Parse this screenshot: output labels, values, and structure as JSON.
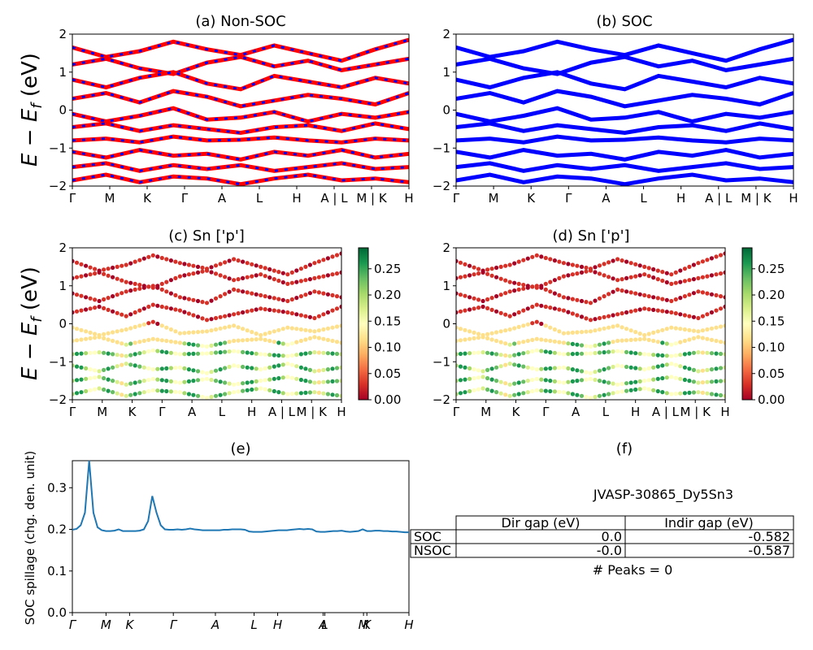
{
  "chart_data": [
    {
      "type": "line",
      "title": "(a) Non-SOC",
      "ylabel": "E − E_f (eV)",
      "ylim": [
        -2,
        2
      ],
      "yticks": [
        "−2",
        "−1",
        "0",
        "1",
        "2"
      ],
      "x_tick_labels": [
        "Γ",
        "M",
        "K",
        "Γ",
        "A",
        "L",
        "H",
        "A | L",
        "M | K",
        "H"
      ],
      "colors": [
        "#ff0000",
        "#0000ff"
      ],
      "bands": [
        [
          1.65,
          1.4,
          1.55,
          1.8,
          1.6,
          1.45,
          1.7,
          1.5,
          1.3,
          1.6,
          1.85
        ],
        [
          1.2,
          1.35,
          1.1,
          0.95,
          1.25,
          1.4,
          1.15,
          1.3,
          1.05,
          1.2,
          1.35
        ],
        [
          0.8,
          0.6,
          0.85,
          1.0,
          0.7,
          0.55,
          0.9,
          0.75,
          0.6,
          0.85,
          0.7
        ],
        [
          0.3,
          0.45,
          0.2,
          0.5,
          0.35,
          0.1,
          0.25,
          0.4,
          0.3,
          0.15,
          0.45
        ],
        [
          -0.1,
          -0.3,
          -0.15,
          0.05,
          -0.25,
          -0.2,
          -0.05,
          -0.3,
          -0.1,
          -0.2,
          -0.05
        ],
        [
          -0.45,
          -0.35,
          -0.55,
          -0.4,
          -0.5,
          -0.6,
          -0.45,
          -0.4,
          -0.55,
          -0.35,
          -0.5
        ],
        [
          -0.8,
          -0.75,
          -0.85,
          -0.7,
          -0.8,
          -0.78,
          -0.72,
          -0.8,
          -0.85,
          -0.75,
          -0.8
        ],
        [
          -1.1,
          -1.25,
          -1.05,
          -1.2,
          -1.15,
          -1.3,
          -1.1,
          -1.2,
          -1.05,
          -1.25,
          -1.15
        ],
        [
          -1.5,
          -1.4,
          -1.6,
          -1.45,
          -1.55,
          -1.45,
          -1.6,
          -1.5,
          -1.4,
          -1.55,
          -1.5
        ],
        [
          -1.85,
          -1.7,
          -1.9,
          -1.75,
          -1.8,
          -1.95,
          -1.8,
          -1.7,
          -1.85,
          -1.8,
          -1.9
        ]
      ]
    },
    {
      "type": "line",
      "title": "(b) SOC",
      "ylim": [
        -2,
        2
      ],
      "yticks": [
        "−2",
        "−1",
        "0",
        "1",
        "2"
      ],
      "x_tick_labels": [
        "Γ",
        "M",
        "K",
        "Γ",
        "A",
        "L",
        "H",
        "A | L",
        "M | K",
        "H"
      ],
      "colors": [
        "#0000ff"
      ],
      "bands": [
        [
          1.65,
          1.4,
          1.55,
          1.8,
          1.6,
          1.45,
          1.7,
          1.5,
          1.3,
          1.6,
          1.85
        ],
        [
          1.2,
          1.35,
          1.1,
          0.95,
          1.25,
          1.4,
          1.15,
          1.3,
          1.05,
          1.2,
          1.35
        ],
        [
          0.8,
          0.6,
          0.85,
          1.0,
          0.7,
          0.55,
          0.9,
          0.75,
          0.6,
          0.85,
          0.7
        ],
        [
          0.3,
          0.45,
          0.2,
          0.5,
          0.35,
          0.1,
          0.25,
          0.4,
          0.3,
          0.15,
          0.45
        ],
        [
          -0.1,
          -0.3,
          -0.15,
          0.05,
          -0.25,
          -0.2,
          -0.05,
          -0.3,
          -0.1,
          -0.2,
          -0.05
        ],
        [
          -0.45,
          -0.35,
          -0.55,
          -0.4,
          -0.5,
          -0.6,
          -0.45,
          -0.4,
          -0.55,
          -0.35,
          -0.5
        ],
        [
          -0.8,
          -0.75,
          -0.85,
          -0.7,
          -0.8,
          -0.78,
          -0.72,
          -0.8,
          -0.85,
          -0.75,
          -0.8
        ],
        [
          -1.1,
          -1.25,
          -1.05,
          -1.2,
          -1.15,
          -1.3,
          -1.1,
          -1.2,
          -1.05,
          -1.25,
          -1.15
        ],
        [
          -1.5,
          -1.4,
          -1.6,
          -1.45,
          -1.55,
          -1.45,
          -1.6,
          -1.5,
          -1.4,
          -1.55,
          -1.5
        ],
        [
          -1.85,
          -1.7,
          -1.9,
          -1.75,
          -1.8,
          -1.95,
          -1.8,
          -1.7,
          -1.85,
          -1.8,
          -1.9
        ]
      ]
    },
    {
      "type": "scatter",
      "title": "(c)  Sn ['p']",
      "ylabel": "E − E_f (eV)",
      "ylim": [
        -2,
        2
      ],
      "yticks": [
        "−2",
        "−1",
        "0",
        "1",
        "2"
      ],
      "x_tick_labels": [
        "Γ",
        "M",
        "K",
        "Γ",
        "A",
        "L",
        "H",
        "A | L",
        "M | K",
        "H"
      ],
      "colorbar_ticks": [
        "0.00",
        "0.05",
        "0.10",
        "0.15",
        "0.20",
        "0.25"
      ],
      "colorbar_range": [
        0,
        0.29
      ],
      "colormap": "RdYlGn"
    },
    {
      "type": "scatter",
      "title": "(d) Sn ['p']",
      "ylim": [
        -2,
        2
      ],
      "yticks": [
        "−2",
        "−1",
        "0",
        "1",
        "2"
      ],
      "x_tick_labels": [
        "Γ",
        "M",
        "K",
        "Γ",
        "A",
        "L",
        "H",
        "A | L",
        "M | K",
        "H"
      ],
      "colorbar_ticks": [
        "0.00",
        "0.05",
        "0.10",
        "0.15",
        "0.20",
        "0.25"
      ],
      "colorbar_range": [
        0,
        0.29
      ],
      "colormap": "RdYlGn"
    },
    {
      "type": "line",
      "title": "(e)",
      "ylabel": "SOC spillage (chg. den. unit)",
      "ylim": [
        0,
        0.365
      ],
      "yticks": [
        "0.0",
        "0.1",
        "0.2",
        "0.3"
      ],
      "x_tick_labels": [
        "Γ",
        "M",
        "K",
        "Γ",
        "A",
        "L",
        "H",
        "A",
        "L",
        "M",
        "K",
        "H"
      ],
      "color": "#1f77b4",
      "x": [
        0,
        1,
        2,
        3,
        4,
        5,
        6,
        7,
        8,
        9,
        10,
        11,
        12,
        13,
        14,
        15,
        16,
        17,
        18,
        19,
        20,
        21,
        22,
        23,
        24,
        25,
        26,
        27,
        28,
        29,
        30,
        31,
        32,
        33,
        34,
        35,
        36,
        37,
        38,
        39,
        40,
        41,
        42,
        43,
        44,
        45,
        46,
        47,
        48,
        49,
        50,
        51,
        52,
        53,
        54,
        55,
        56,
        57,
        58,
        59,
        60,
        61,
        62,
        63,
        64,
        65,
        66,
        67,
        68,
        69,
        70,
        71,
        72,
        73,
        74,
        75,
        76,
        77,
        78,
        79,
        80
      ],
      "y": [
        0.199,
        0.201,
        0.21,
        0.24,
        0.365,
        0.24,
        0.205,
        0.198,
        0.196,
        0.196,
        0.197,
        0.2,
        0.196,
        0.196,
        0.196,
        0.196,
        0.197,
        0.2,
        0.22,
        0.28,
        0.24,
        0.21,
        0.2,
        0.199,
        0.199,
        0.2,
        0.199,
        0.2,
        0.202,
        0.2,
        0.199,
        0.198,
        0.198,
        0.198,
        0.198,
        0.198,
        0.199,
        0.199,
        0.2,
        0.2,
        0.2,
        0.199,
        0.195,
        0.194,
        0.194,
        0.194,
        0.195,
        0.196,
        0.197,
        0.198,
        0.198,
        0.198,
        0.199,
        0.2,
        0.201,
        0.2,
        0.201,
        0.2,
        0.195,
        0.194,
        0.194,
        0.195,
        0.196,
        0.196,
        0.197,
        0.195,
        0.194,
        0.195,
        0.196,
        0.2,
        0.196,
        0.196,
        0.197,
        0.197,
        0.196,
        0.196,
        0.195,
        0.195,
        0.194,
        0.193,
        0.193
      ]
    }
  ],
  "panel_f": {
    "title": "(f)",
    "material": "JVASP-30865_Dy5Sn3",
    "table": {
      "headers": [
        "Dir gap (eV)",
        "Indir gap (eV)"
      ],
      "rows": [
        {
          "label": "SOC",
          "dir": "0.0",
          "indir": "-0.582"
        },
        {
          "label": "NSOC",
          "dir": "-0.0",
          "indir": "-0.587"
        }
      ]
    },
    "peaks": "# Peaks = 0"
  }
}
